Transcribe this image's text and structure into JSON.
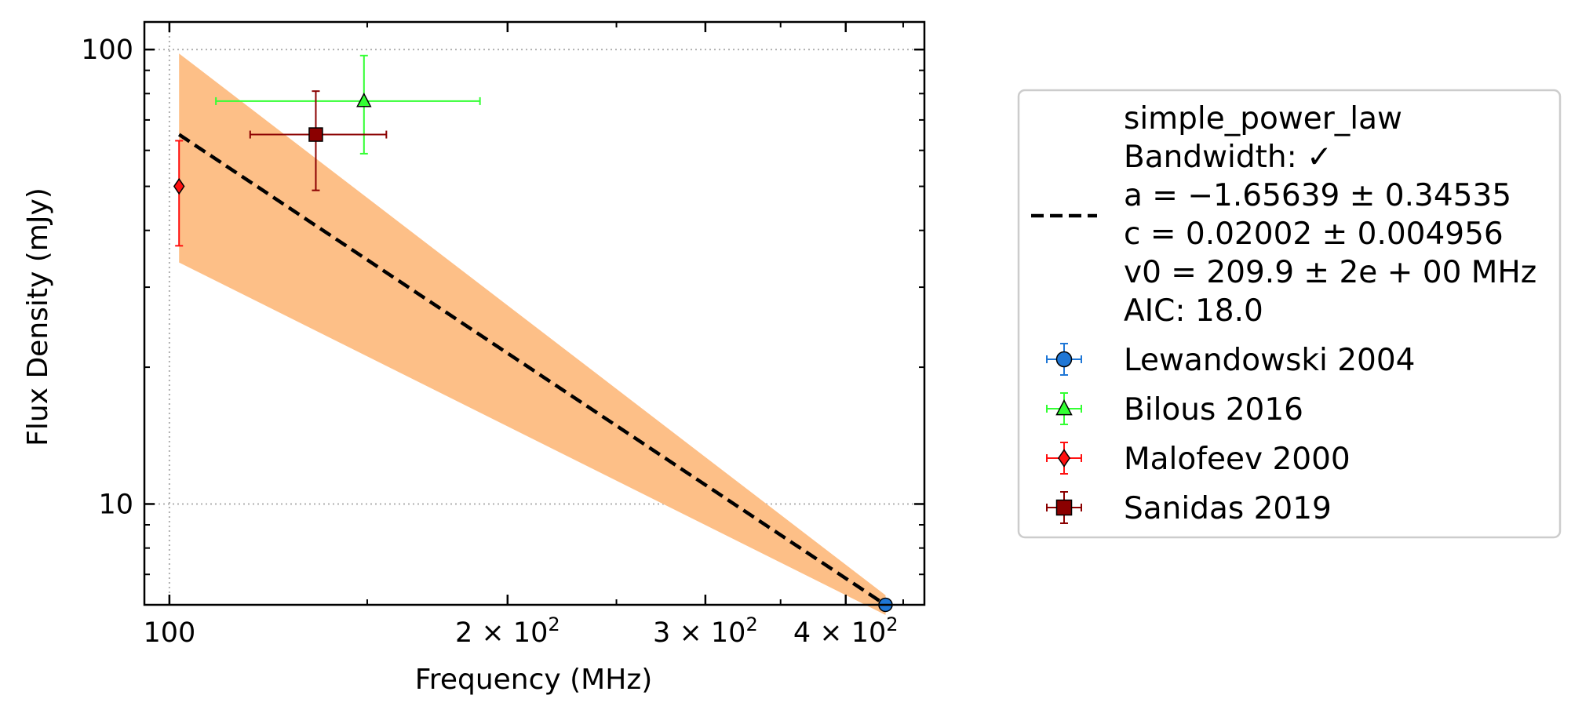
{
  "chart_data": {
    "type": "scatter",
    "xlabel": "Frequency (MHz)",
    "ylabel": "Flux Density (mJy)",
    "x_scale": "log",
    "y_scale": "log",
    "xlim": [
      95,
      470
    ],
    "ylim": [
      6.0,
      115
    ],
    "x_ticks": [
      {
        "value": 100,
        "label": "100"
      },
      {
        "value": 200,
        "label": "2 × 10",
        "sup": "2"
      },
      {
        "value": 300,
        "label": "3 × 10",
        "sup": "2"
      },
      {
        "value": 400,
        "label": "4 × 10",
        "sup": "2"
      }
    ],
    "y_ticks": [
      {
        "value": 10,
        "label": "10"
      },
      {
        "value": 100,
        "label": "100"
      }
    ],
    "grid": "major, dotted",
    "legend_position": "outside-right",
    "fit": {
      "name": "simple_power_law",
      "lines": [
        "simple_power_law",
        "Bandwidth: ✓",
        "a = −1.65639 ± 0.34535",
        "c = 0.02002 ± 0.004956",
        "v0 = 209.9 ± 2e + 00 MHz",
        "AIC: 18.0"
      ],
      "line_color": "#000000",
      "band_color": "#fdbf87",
      "curve": [
        {
          "x": 102,
          "y": 65.0,
          "y_low": 34.0,
          "y_high": 98.0
        },
        {
          "x": 434,
          "y": 6.0,
          "y_low": 5.7,
          "y_high": 6.3
        }
      ]
    },
    "series": [
      {
        "name": "Lewandowski 2004",
        "color": "#1f77d6",
        "marker": "circle",
        "points": [
          {
            "x": 434,
            "y": 6.0,
            "xerr": [
              0,
              0
            ],
            "yerr": [
              0,
              0
            ]
          }
        ]
      },
      {
        "name": "Bilous 2016",
        "color": "#33ff33",
        "marker": "triangle",
        "points": [
          {
            "x": 149,
            "y": 77,
            "xerr": [
              39,
              40
            ],
            "yerr": [
              18,
              20
            ]
          }
        ]
      },
      {
        "name": "Malofeev 2000",
        "color": "#ff1111",
        "marker": "diamond",
        "points": [
          {
            "x": 102,
            "y": 50,
            "xerr": [
              0,
              0
            ],
            "yerr": [
              13,
              13
            ]
          }
        ]
      },
      {
        "name": "Sanidas 2019",
        "color": "#8b0000",
        "marker": "square",
        "points": [
          {
            "x": 135,
            "y": 65,
            "xerr": [
              17,
              21
            ],
            "yerr": [
              16,
              16
            ]
          }
        ]
      }
    ]
  }
}
